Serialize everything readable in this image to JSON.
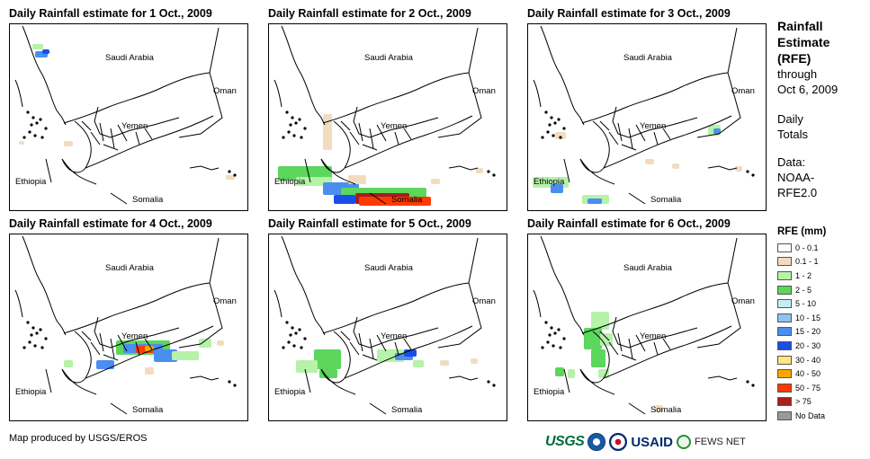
{
  "panels": [
    {
      "title": "Daily Rainfall estimate for 1 Oct., 2009"
    },
    {
      "title": "Daily Rainfall estimate for 2 Oct., 2009"
    },
    {
      "title": "Daily Rainfall estimate for 3 Oct., 2009"
    },
    {
      "title": "Daily Rainfall estimate for 4 Oct., 2009"
    },
    {
      "title": "Daily Rainfall estimate for 5 Oct., 2009"
    },
    {
      "title": "Daily Rainfall estimate for 6 Oct., 2009"
    }
  ],
  "places": {
    "saudi": "Saudi Arabia",
    "oman": "Oman",
    "yemen": "Yemen",
    "ethiopia": "Ethiopia",
    "somalia": "Somalia"
  },
  "legend": {
    "title_lines": [
      "Rainfall",
      "Estimate",
      "(RFE)"
    ],
    "through": "through",
    "date": "Oct 6, 2009",
    "daily": "Daily",
    "totals": "Totals",
    "data_label": "Data:",
    "source1": "NOAA-",
    "source2": "RFE2.0",
    "rfe_title": "RFE (mm)",
    "classes": [
      {
        "label": "0 - 0.1",
        "color": "#ffffff"
      },
      {
        "label": "0.1 - 1",
        "color": "#f2dcc0"
      },
      {
        "label": "1 - 2",
        "color": "#b6f2a8"
      },
      {
        "label": "2 - 5",
        "color": "#5cd65c"
      },
      {
        "label": "5 - 10",
        "color": "#c4ecf8"
      },
      {
        "label": "10 - 15",
        "color": "#8cc4f0"
      },
      {
        "label": "15 - 20",
        "color": "#4a8ef0"
      },
      {
        "label": "20 - 30",
        "color": "#1a4ee6"
      },
      {
        "label": "30 - 40",
        "color": "#ffe680"
      },
      {
        "label": "40 - 50",
        "color": "#ffa500"
      },
      {
        "label": "50 - 75",
        "color": "#ff3a00"
      },
      {
        "label": "> 75",
        "color": "#a61e1e"
      },
      {
        "label": "No Data",
        "color": "#9a9a9a"
      }
    ]
  },
  "footer": {
    "credit": "Map produced by USGS/EROS",
    "logo_usgs": "USGS",
    "logo_usaid": "USAID",
    "logo_fews": "FEWS NET"
  }
}
